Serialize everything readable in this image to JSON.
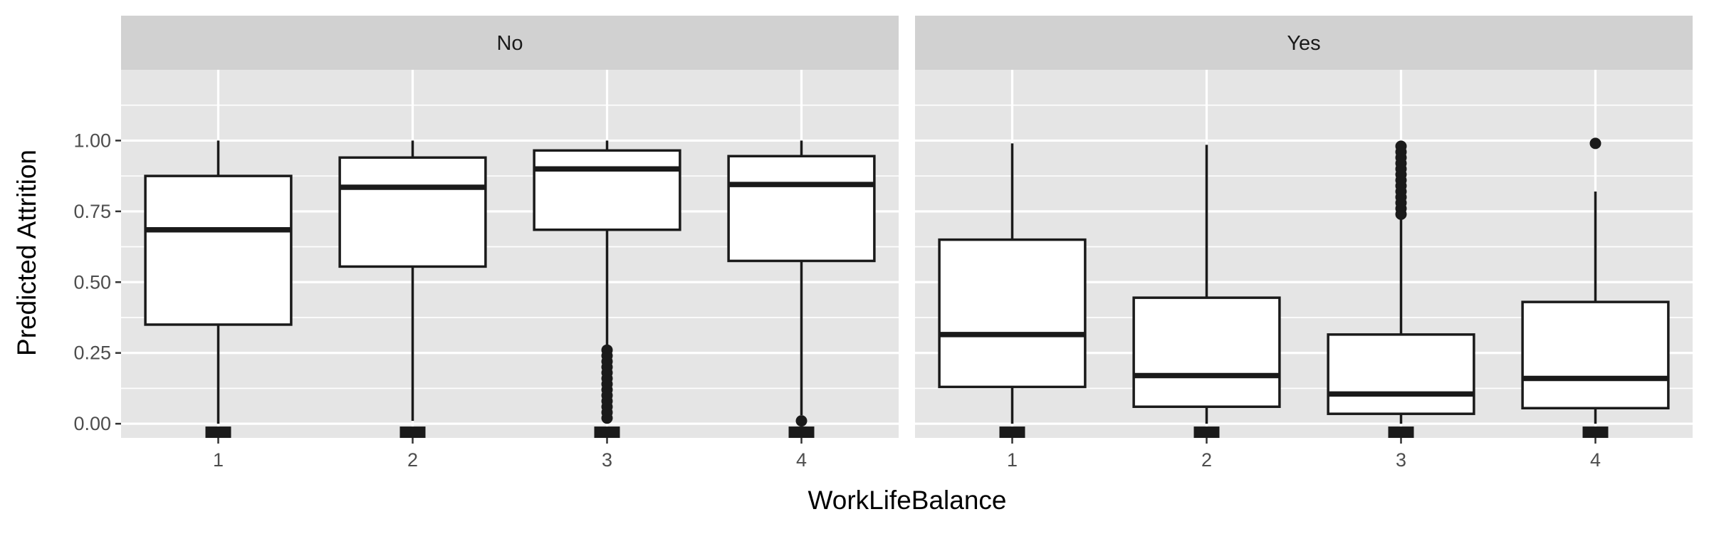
{
  "chart_data": {
    "type": "box",
    "xlabel": "WorkLifeBalance",
    "ylabel": "Predicted Attrition",
    "categories": [
      "1",
      "2",
      "3",
      "4"
    ],
    "ylim": [
      -0.05,
      1.25
    ],
    "yticks": [
      0.0,
      0.25,
      0.5,
      0.75,
      1.0
    ],
    "ytick_labels": [
      "0.00",
      "0.25",
      "0.50",
      "0.75",
      "1.00"
    ],
    "grid": true,
    "rug_value": -0.03,
    "colors": {
      "panel_bg": "#e5e5e5",
      "strip_bg": "#d1d1d1",
      "grid": "#ffffff",
      "box_fill": "#ffffff",
      "box_line": "#1a1a1a"
    },
    "facets": [
      {
        "label": "No",
        "boxes": [
          {
            "x": "1",
            "whisker_low": 0.0,
            "q1": 0.35,
            "median": 0.685,
            "q3": 0.875,
            "whisker_high": 1.0,
            "outliers": []
          },
          {
            "x": "2",
            "whisker_low": 0.01,
            "q1": 0.555,
            "median": 0.835,
            "q3": 0.94,
            "whisker_high": 1.0,
            "outliers": []
          },
          {
            "x": "3",
            "whisker_low": 0.27,
            "q1": 0.685,
            "median": 0.9,
            "q3": 0.965,
            "whisker_high": 1.0,
            "outliers": [
              0.02,
              0.04,
              0.06,
              0.08,
              0.1,
              0.12,
              0.14,
              0.16,
              0.18,
              0.2,
              0.22,
              0.24,
              0.26
            ]
          },
          {
            "x": "4",
            "whisker_low": 0.03,
            "q1": 0.575,
            "median": 0.845,
            "q3": 0.945,
            "whisker_high": 1.0,
            "outliers": [
              0.01
            ]
          }
        ]
      },
      {
        "label": "Yes",
        "boxes": [
          {
            "x": "1",
            "whisker_low": 0.0,
            "q1": 0.13,
            "median": 0.315,
            "q3": 0.65,
            "whisker_high": 0.99,
            "outliers": []
          },
          {
            "x": "2",
            "whisker_low": 0.0,
            "q1": 0.06,
            "median": 0.17,
            "q3": 0.445,
            "whisker_high": 0.985,
            "outliers": []
          },
          {
            "x": "3",
            "whisker_low": 0.0,
            "q1": 0.035,
            "median": 0.105,
            "q3": 0.315,
            "whisker_high": 0.73,
            "outliers": [
              0.74,
              0.76,
              0.78,
              0.8,
              0.82,
              0.84,
              0.86,
              0.88,
              0.9,
              0.92,
              0.94,
              0.96,
              0.98
            ]
          },
          {
            "x": "4",
            "whisker_low": 0.0,
            "q1": 0.055,
            "median": 0.16,
            "q3": 0.43,
            "whisker_high": 0.82,
            "outliers": [
              0.99
            ]
          }
        ]
      }
    ]
  }
}
